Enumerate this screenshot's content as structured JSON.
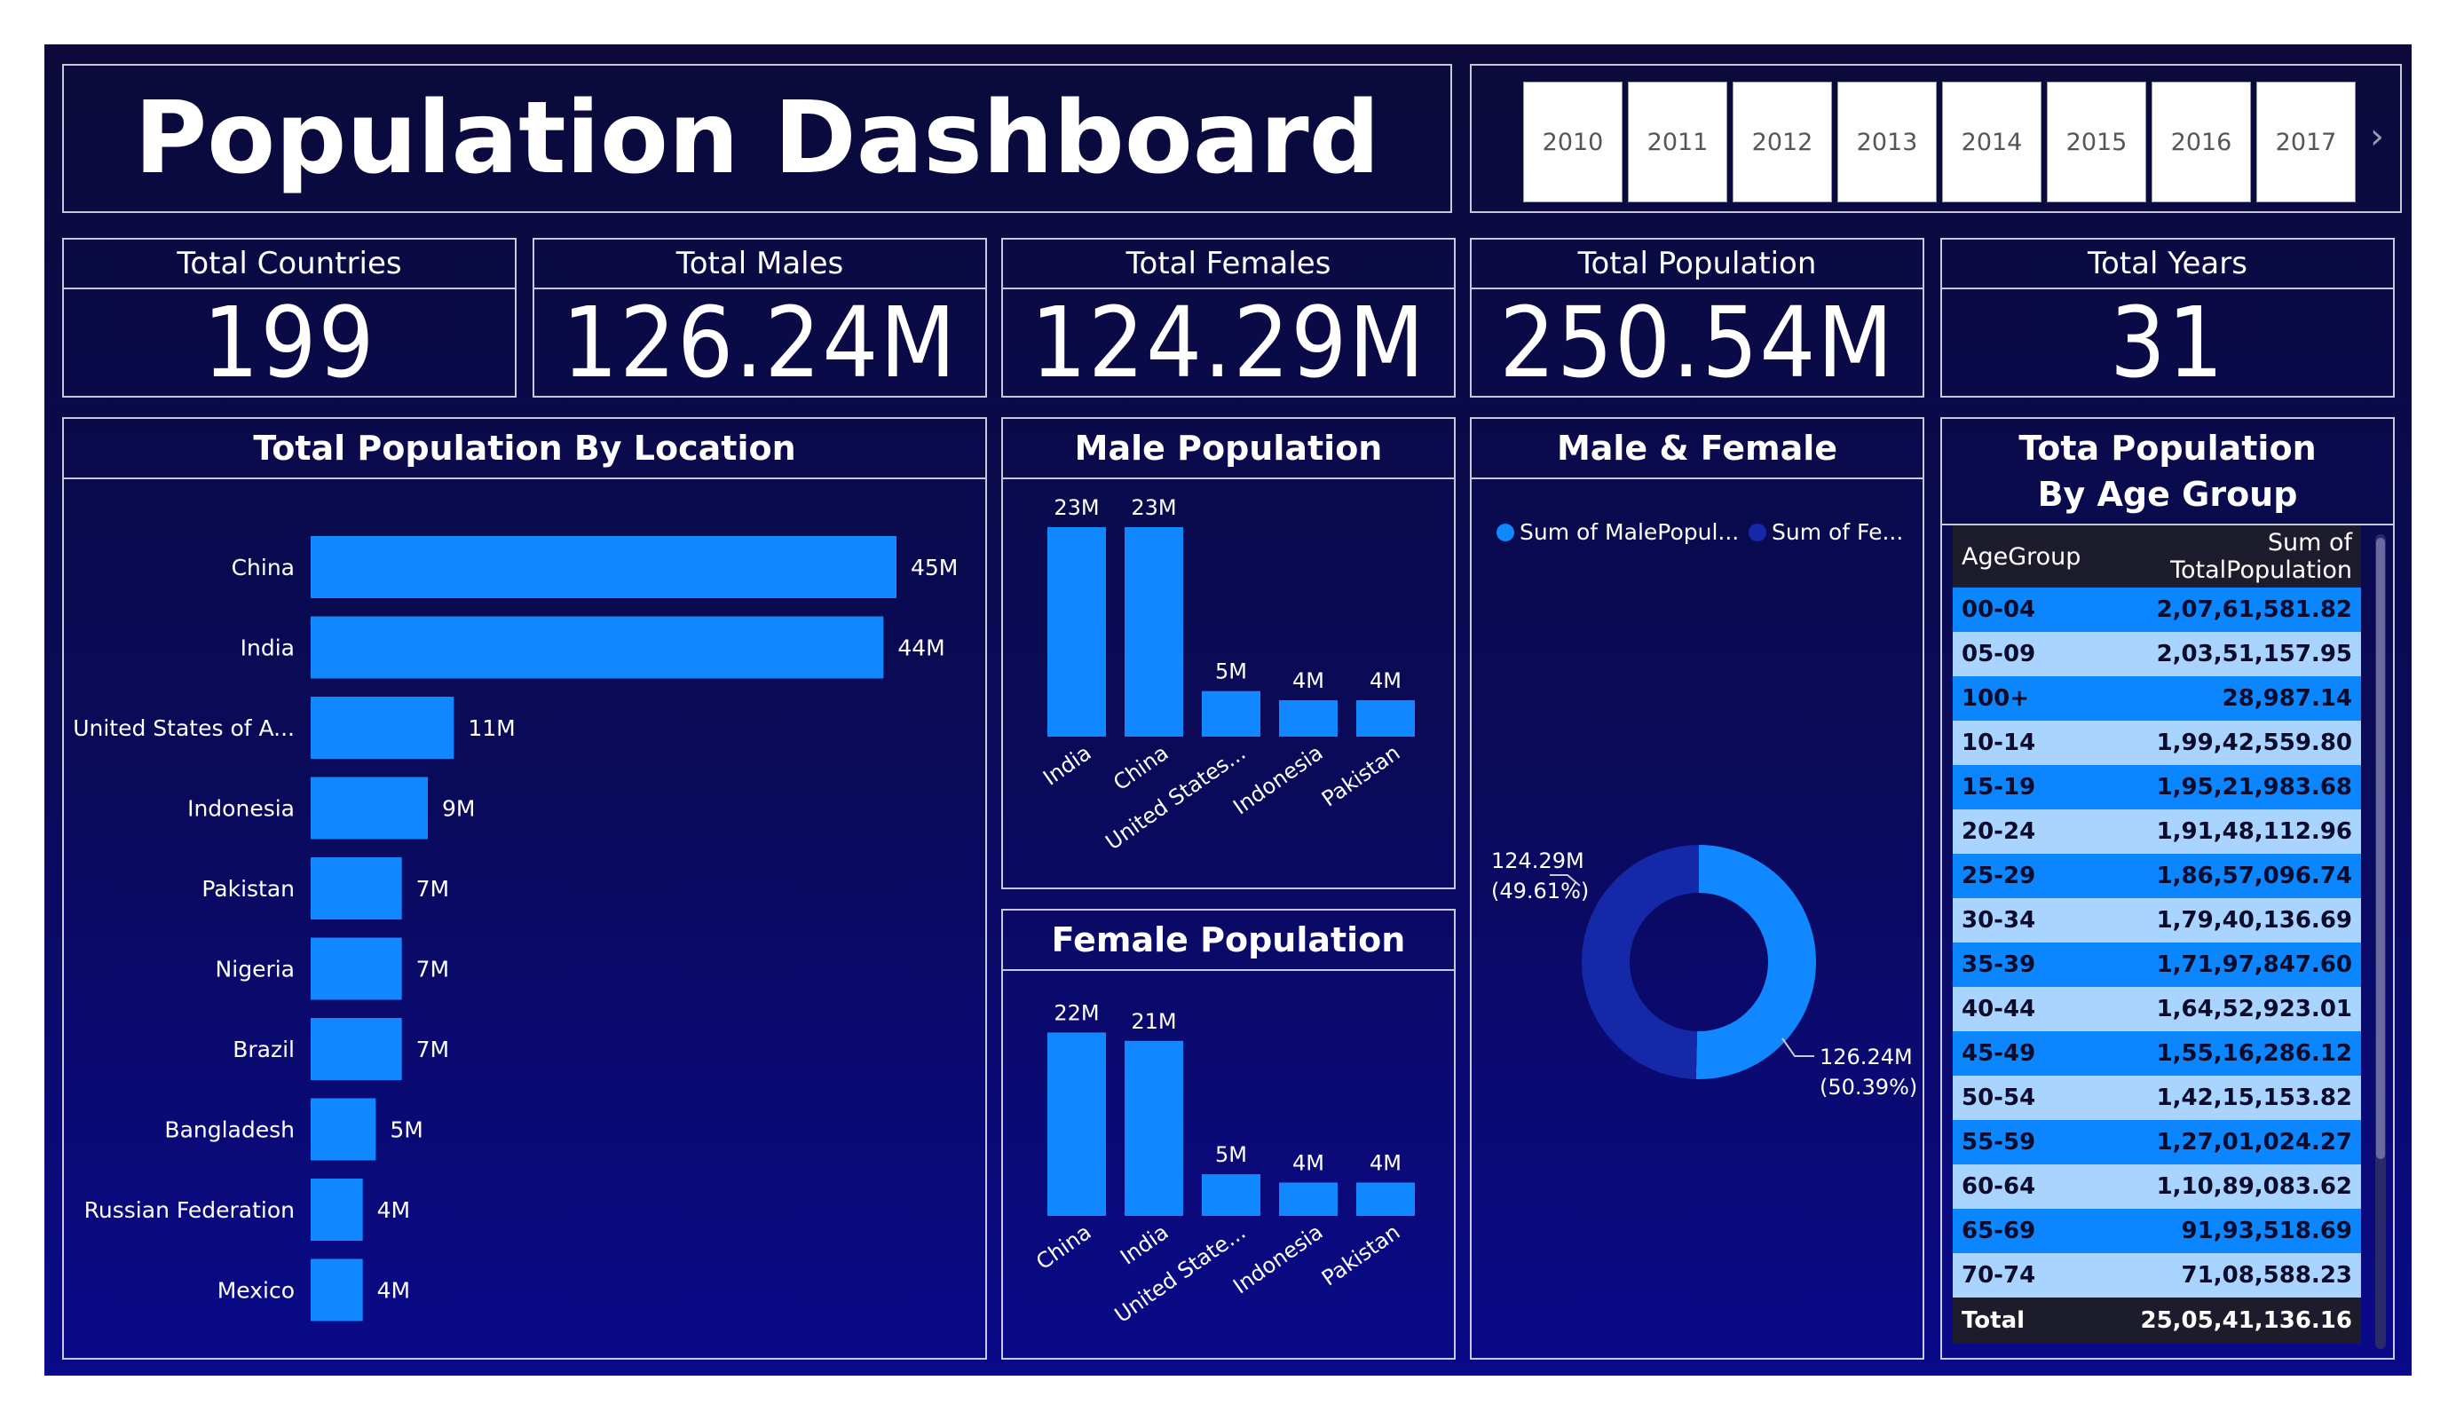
{
  "title": "Population Dashboard",
  "years": [
    "2010",
    "2011",
    "2012",
    "2013",
    "2014",
    "2015",
    "2016",
    "2017"
  ],
  "kpis": [
    {
      "label": "Total Countries",
      "value": "199"
    },
    {
      "label": "Total Males",
      "value": "126.24M"
    },
    {
      "label": "Total Females",
      "value": "124.29M"
    },
    {
      "label": "Total Population",
      "value": "250.54M"
    },
    {
      "label": "Total Years",
      "value": "31"
    }
  ],
  "colors": {
    "bar": "#1188ff",
    "male": "#1188ff",
    "female": "#1428a8",
    "accent": "#0b86ff"
  },
  "chart_data": [
    {
      "type": "bar",
      "title": "Total Population By Location",
      "orientation": "horizontal",
      "categories": [
        "China",
        "India",
        "United States of A...",
        "Indonesia",
        "Pakistan",
        "Nigeria",
        "Brazil",
        "Bangladesh",
        "Russian Federation",
        "Mexico"
      ],
      "values": [
        45,
        44,
        11,
        9,
        7,
        7,
        7,
        5,
        4,
        4
      ],
      "labels": [
        "45M",
        "44M",
        "11M",
        "9M",
        "7M",
        "7M",
        "7M",
        "5M",
        "4M",
        "4M"
      ]
    },
    {
      "type": "bar",
      "title": "Male Population",
      "categories": [
        "India",
        "China",
        "United States...",
        "Indonesia",
        "Pakistan"
      ],
      "values": [
        23,
        23,
        5,
        4,
        4
      ],
      "labels": [
        "23M",
        "23M",
        "5M",
        "4M",
        "4M"
      ]
    },
    {
      "type": "bar",
      "title": "Female Population",
      "categories": [
        "China",
        "India",
        "United State...",
        "Indonesia",
        "Pakistan"
      ],
      "values": [
        22,
        21,
        5,
        4,
        4
      ],
      "labels": [
        "22M",
        "21M",
        "5M",
        "4M",
        "4M"
      ]
    },
    {
      "type": "pie",
      "title": "Male & Female",
      "legend": [
        "Sum of MalePopul...",
        "Sum of Fe..."
      ],
      "values": [
        126.24,
        124.29
      ],
      "labels": [
        "126.24M",
        "124.29M"
      ],
      "percents": [
        "(50.39%)",
        "(49.61%)"
      ]
    },
    {
      "type": "table",
      "title": "Tota Population By Age Group",
      "columns": [
        "AgeGroup",
        "Sum of TotalPopulation"
      ],
      "rows": [
        [
          "00-04",
          "2,07,61,581.82"
        ],
        [
          "05-09",
          "2,03,51,157.95"
        ],
        [
          "100+",
          "28,987.14"
        ],
        [
          "10-14",
          "1,99,42,559.80"
        ],
        [
          "15-19",
          "1,95,21,983.68"
        ],
        [
          "20-24",
          "1,91,48,112.96"
        ],
        [
          "25-29",
          "1,86,57,096.74"
        ],
        [
          "30-34",
          "1,79,40,136.69"
        ],
        [
          "35-39",
          "1,71,97,847.60"
        ],
        [
          "40-44",
          "1,64,52,923.01"
        ],
        [
          "45-49",
          "1,55,16,286.12"
        ],
        [
          "50-54",
          "1,42,15,153.82"
        ],
        [
          "55-59",
          "1,27,01,024.27"
        ],
        [
          "60-64",
          "1,10,89,083.62"
        ],
        [
          "65-69",
          "91,93,518.69"
        ],
        [
          "70-74",
          "71,08,588.23"
        ]
      ],
      "total": [
        "Total",
        "25,05,41,136.16"
      ]
    }
  ]
}
